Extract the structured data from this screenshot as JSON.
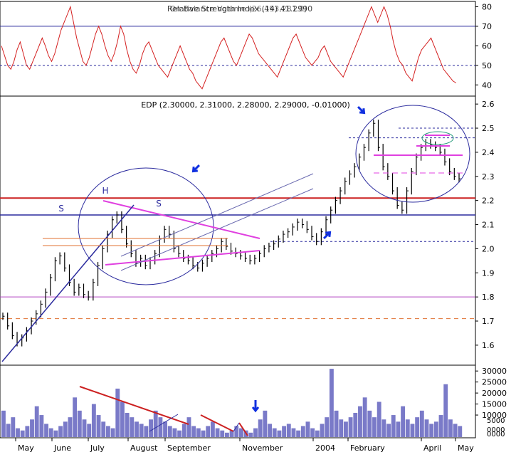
{
  "chart_data": [
    {
      "type": "line",
      "panel": "rsi",
      "title": "Relative Strength Index (14) 41.2990",
      "overlay_title": "On Balance Volume (26,493,281.0)",
      "ylim": [
        35,
        82
      ],
      "yticks": [
        40,
        50,
        60,
        70,
        80
      ],
      "reference_levels": [
        {
          "value": 70,
          "style": "solid"
        },
        {
          "value": 50,
          "style": "dashed"
        }
      ],
      "series": [
        {
          "values": [
            60,
            55,
            50,
            48,
            52,
            58,
            62,
            56,
            50,
            48,
            52,
            56,
            60,
            64,
            60,
            55,
            52,
            56,
            62,
            68,
            72,
            76,
            80,
            72,
            64,
            58,
            52,
            50,
            54,
            60,
            66,
            70,
            66,
            60,
            55,
            52,
            56,
            62,
            70,
            66,
            58,
            52,
            48,
            46,
            50,
            56,
            60,
            62,
            58,
            54,
            50,
            48,
            46,
            44,
            48,
            52,
            56,
            60,
            56,
            52,
            48,
            46,
            42,
            40,
            38,
            42,
            46,
            50,
            54,
            58,
            62,
            64,
            60,
            56,
            52,
            50,
            54,
            58,
            62,
            66,
            64,
            60,
            56,
            54,
            52,
            50,
            48,
            46,
            44,
            48,
            52,
            56,
            60,
            64,
            66,
            62,
            58,
            54,
            52,
            50,
            52,
            54,
            58,
            60,
            56,
            52,
            50,
            48,
            46,
            44,
            48,
            52,
            56,
            60,
            64,
            68,
            72,
            76,
            80,
            76,
            72,
            76,
            80,
            76,
            70,
            62,
            56,
            52,
            50,
            46,
            44,
            42,
            48,
            54,
            58,
            60,
            62,
            64,
            60,
            56,
            52,
            48,
            46,
            44,
            42,
            41
          ]
        }
      ]
    },
    {
      "type": "line",
      "panel": "price",
      "title": "EDP (2.30000, 2.31000, 2.28000, 2.29000, -0.01000)",
      "ylim": [
        1.52,
        2.63
      ],
      "yticks": [
        1.6,
        1.7,
        1.8,
        1.9,
        2.0,
        2.1,
        2.2,
        2.3,
        2.4,
        2.5,
        2.6
      ],
      "x_month_labels": [
        "May",
        "June",
        "July",
        "August",
        "September",
        "November",
        "2004",
        "February",
        "April",
        "May"
      ],
      "annotations": [
        "S",
        "H",
        "S"
      ],
      "reference_levels": [
        2.21,
        2.14,
        1.8,
        1.71
      ],
      "series": [
        {
          "values": [
            1.72,
            1.68,
            1.64,
            1.61,
            1.63,
            1.66,
            1.7,
            1.73,
            1.77,
            1.82,
            1.88,
            1.95,
            1.97,
            1.92,
            1.86,
            1.82,
            1.84,
            1.81,
            1.8,
            1.86,
            1.93,
            2.0,
            2.06,
            2.12,
            2.14,
            2.08,
            2.02,
            1.98,
            1.94,
            1.96,
            1.93,
            1.95,
            1.98,
            2.04,
            2.08,
            2.06,
            2.0,
            1.98,
            1.96,
            1.95,
            1.93,
            1.92,
            1.94,
            1.96,
            1.98,
            2.0,
            2.03,
            2.01,
            1.99,
            1.98,
            1.97,
            1.96,
            1.95,
            1.96,
            1.98,
            2.0,
            2.01,
            2.02,
            2.04,
            2.06,
            2.07,
            2.09,
            2.11,
            2.1,
            2.08,
            2.05,
            2.03,
            2.07,
            2.12,
            2.16,
            2.2,
            2.24,
            2.28,
            2.31,
            2.34,
            2.38,
            2.42,
            2.48,
            2.52,
            2.42,
            2.34,
            2.3,
            2.24,
            2.18,
            2.16,
            2.24,
            2.32,
            2.38,
            2.42,
            2.44,
            2.43,
            2.42,
            2.4,
            2.36,
            2.32,
            2.3,
            2.29
          ]
        }
      ]
    },
    {
      "type": "bar",
      "panel": "volume",
      "ylim": [
        0,
        32000
      ],
      "yticks": [
        10000,
        15000,
        20000,
        25000,
        30000
      ],
      "ytick_labels": [
        "10000",
        "15000",
        "20000",
        "25000",
        "30000"
      ],
      "extra_tick_labels": [
        "5000",
        "0000",
        "0000"
      ],
      "series": [
        {
          "values": [
            12000,
            6000,
            9000,
            4000,
            3000,
            5000,
            8000,
            14000,
            10000,
            6000,
            4000,
            3000,
            5000,
            7000,
            9000,
            18000,
            12000,
            8000,
            6000,
            15000,
            10000,
            7000,
            5000,
            4000,
            22000,
            16000,
            11000,
            9000,
            7000,
            6000,
            5000,
            8000,
            12000,
            9000,
            7000,
            5000,
            4000,
            3000,
            6000,
            9000,
            5000,
            4000,
            3000,
            5000,
            7000,
            4000,
            3000,
            2000,
            3000,
            5000,
            4000,
            3000,
            2000,
            4000,
            8000,
            12000,
            6000,
            4000,
            3000,
            5000,
            6000,
            4000,
            3000,
            5000,
            7000,
            4000,
            3000,
            6000,
            9000,
            31000,
            12000,
            8000,
            7000,
            9000,
            11000,
            14000,
            18000,
            12000,
            9000,
            16000,
            8000,
            6000,
            10000,
            7000,
            14000,
            8000,
            6000,
            9000,
            12000,
            8000,
            6000,
            7000,
            10000,
            24000,
            8000,
            6000,
            5000
          ]
        }
      ]
    }
  ]
}
